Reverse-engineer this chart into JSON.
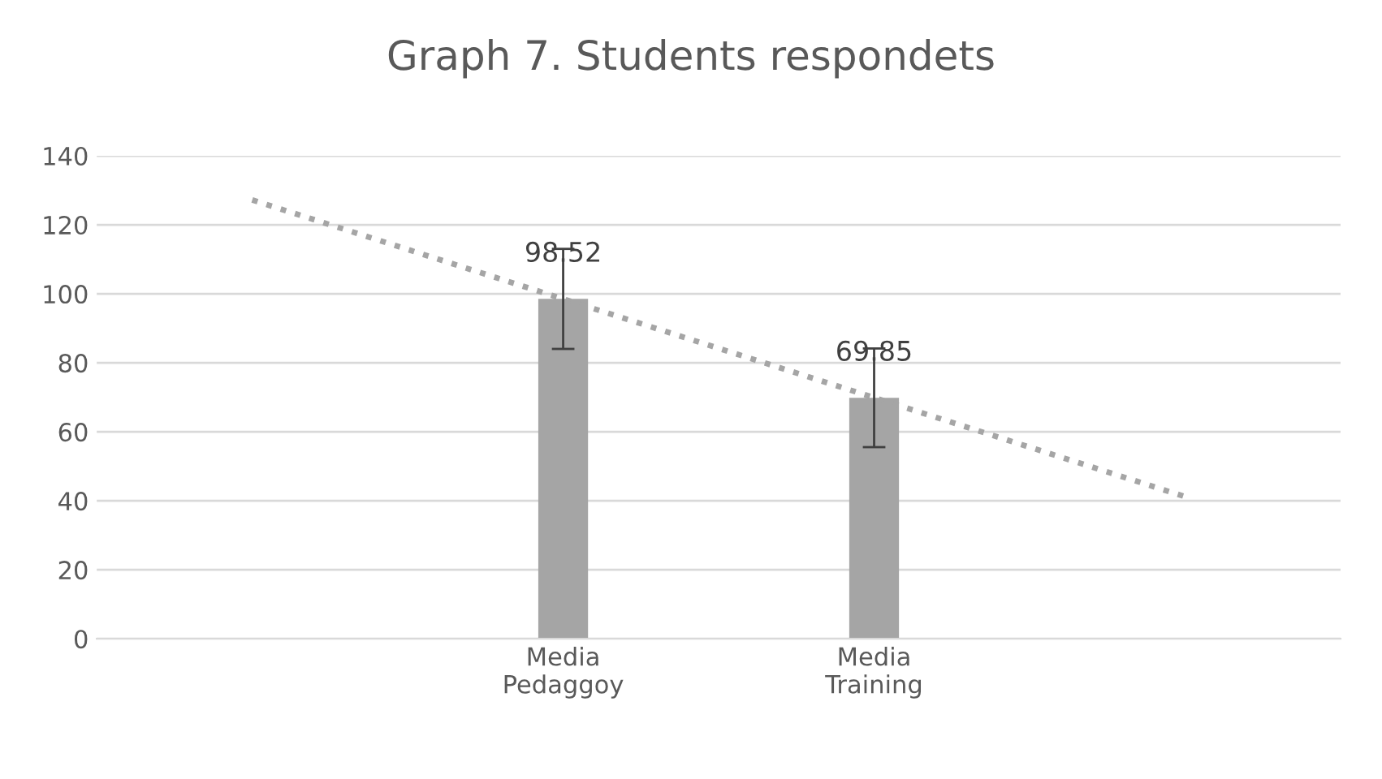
{
  "chart_data": {
    "type": "bar",
    "title": "Graph 7. Students respondets",
    "categories": [
      null,
      "Media\nPedaggoy",
      "Media\nTraining",
      null
    ],
    "series": [
      {
        "color": "#a5a5a5",
        "values": [
          null,
          98.52,
          69.85,
          null
        ],
        "errors": [
          null,
          14.5,
          14.3,
          null
        ],
        "value_labels": [
          null,
          "98.52",
          "69.85",
          null
        ]
      },
      {
        "type": "line",
        "color": "#a5a5a5",
        "line_style": "dotted",
        "values": [
          127.2,
          98.5,
          69.9,
          41.2
        ]
      }
    ],
    "ylim": [
      0,
      140
    ],
    "yticks": [
      0,
      20,
      40,
      60,
      80,
      100,
      120,
      140
    ],
    "grid": "y"
  }
}
